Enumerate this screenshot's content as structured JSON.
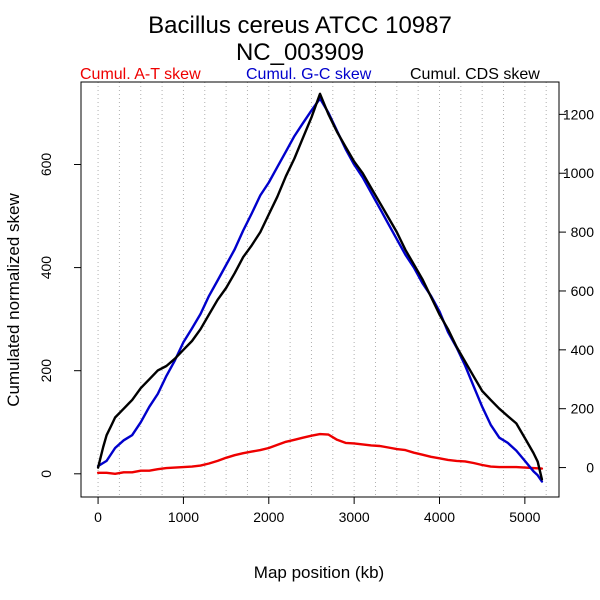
{
  "chart_data": {
    "type": "line",
    "title": "Bacillus cereus ATCC 10987",
    "subtitle": "NC_003909",
    "xlabel": "Map position (kb)",
    "ylabel": "Cumulated normalized skew",
    "xlim": [
      -200,
      5400
    ],
    "ylim_left": [
      -45,
      760
    ],
    "ylim_right": [
      -100,
      1310
    ],
    "grid": "vertical dotted every 250 kb",
    "x_ticks": [
      "0",
      "1000",
      "2000",
      "3000",
      "4000",
      "5000"
    ],
    "y_ticks_left": [
      "0",
      "200",
      "400",
      "600"
    ],
    "y_ticks_right": [
      "0",
      "200",
      "400",
      "600",
      "800",
      "1000",
      "1200"
    ],
    "legend": [
      "Cumul. A-T skew",
      "Cumul. G-C skew",
      "Cumul. CDS skew"
    ],
    "series": [
      {
        "name": "Cumul. A-T skew",
        "color": "#ee0000",
        "axis": "left",
        "points": [
          [
            0,
            2
          ],
          [
            100,
            2
          ],
          [
            200,
            0
          ],
          [
            300,
            3
          ],
          [
            400,
            3
          ],
          [
            500,
            6
          ],
          [
            600,
            6
          ],
          [
            700,
            9
          ],
          [
            800,
            11
          ],
          [
            900,
            12
          ],
          [
            1000,
            13
          ],
          [
            1100,
            14
          ],
          [
            1200,
            16
          ],
          [
            1300,
            20
          ],
          [
            1400,
            25
          ],
          [
            1500,
            31
          ],
          [
            1600,
            36
          ],
          [
            1700,
            40
          ],
          [
            1800,
            43
          ],
          [
            1900,
            46
          ],
          [
            2000,
            50
          ],
          [
            2100,
            56
          ],
          [
            2200,
            62
          ],
          [
            2300,
            66
          ],
          [
            2400,
            70
          ],
          [
            2500,
            74
          ],
          [
            2600,
            77
          ],
          [
            2700,
            76
          ],
          [
            2800,
            66
          ],
          [
            2900,
            60
          ],
          [
            3000,
            59
          ],
          [
            3100,
            57
          ],
          [
            3200,
            55
          ],
          [
            3300,
            54
          ],
          [
            3400,
            51
          ],
          [
            3500,
            48
          ],
          [
            3600,
            46
          ],
          [
            3700,
            41
          ],
          [
            3800,
            37
          ],
          [
            3900,
            33
          ],
          [
            4000,
            30
          ],
          [
            4100,
            27
          ],
          [
            4200,
            25
          ],
          [
            4300,
            24
          ],
          [
            4400,
            21
          ],
          [
            4500,
            17
          ],
          [
            4600,
            14
          ],
          [
            4700,
            13
          ],
          [
            4800,
            13
          ],
          [
            4900,
            13
          ],
          [
            5000,
            12
          ],
          [
            5100,
            11
          ],
          [
            5200,
            10
          ]
        ]
      },
      {
        "name": "Cumul. G-C skew",
        "color": "#0000cc",
        "axis": "left",
        "points": [
          [
            0,
            15
          ],
          [
            50,
            20
          ],
          [
            100,
            25
          ],
          [
            200,
            50
          ],
          [
            300,
            65
          ],
          [
            400,
            75
          ],
          [
            500,
            100
          ],
          [
            600,
            130
          ],
          [
            700,
            155
          ],
          [
            800,
            190
          ],
          [
            900,
            220
          ],
          [
            1000,
            255
          ],
          [
            1100,
            282
          ],
          [
            1200,
            310
          ],
          [
            1300,
            345
          ],
          [
            1400,
            375
          ],
          [
            1500,
            405
          ],
          [
            1600,
            435
          ],
          [
            1700,
            472
          ],
          [
            1800,
            505
          ],
          [
            1900,
            540
          ],
          [
            2000,
            565
          ],
          [
            2100,
            595
          ],
          [
            2200,
            625
          ],
          [
            2300,
            655
          ],
          [
            2400,
            680
          ],
          [
            2500,
            705
          ],
          [
            2600,
            728
          ],
          [
            2700,
            700
          ],
          [
            2800,
            665
          ],
          [
            2900,
            630
          ],
          [
            3000,
            600
          ],
          [
            3100,
            575
          ],
          [
            3200,
            545
          ],
          [
            3300,
            515
          ],
          [
            3400,
            485
          ],
          [
            3500,
            455
          ],
          [
            3600,
            425
          ],
          [
            3700,
            400
          ],
          [
            3800,
            370
          ],
          [
            3900,
            345
          ],
          [
            4000,
            315
          ],
          [
            4100,
            275
          ],
          [
            4200,
            245
          ],
          [
            4300,
            210
          ],
          [
            4400,
            170
          ],
          [
            4500,
            130
          ],
          [
            4600,
            95
          ],
          [
            4700,
            70
          ],
          [
            4800,
            60
          ],
          [
            4900,
            45
          ],
          [
            5000,
            25
          ],
          [
            5100,
            5
          ],
          [
            5150,
            -3
          ],
          [
            5200,
            -15
          ]
        ]
      },
      {
        "name": "Cumul. CDS skew",
        "color": "#000000",
        "axis": "right",
        "points": [
          [
            0,
            0
          ],
          [
            60,
            70
          ],
          [
            100,
            110
          ],
          [
            150,
            140
          ],
          [
            200,
            170
          ],
          [
            300,
            200
          ],
          [
            400,
            230
          ],
          [
            500,
            270
          ],
          [
            600,
            300
          ],
          [
            700,
            330
          ],
          [
            800,
            345
          ],
          [
            900,
            370
          ],
          [
            1000,
            400
          ],
          [
            1100,
            430
          ],
          [
            1200,
            470
          ],
          [
            1300,
            520
          ],
          [
            1400,
            570
          ],
          [
            1500,
            610
          ],
          [
            1600,
            660
          ],
          [
            1700,
            715
          ],
          [
            1800,
            755
          ],
          [
            1900,
            800
          ],
          [
            2000,
            860
          ],
          [
            2100,
            920
          ],
          [
            2200,
            990
          ],
          [
            2300,
            1050
          ],
          [
            2400,
            1120
          ],
          [
            2500,
            1190
          ],
          [
            2600,
            1270
          ],
          [
            2700,
            1200
          ],
          [
            2800,
            1140
          ],
          [
            2900,
            1090
          ],
          [
            3000,
            1040
          ],
          [
            3100,
            1000
          ],
          [
            3200,
            950
          ],
          [
            3300,
            900
          ],
          [
            3400,
            850
          ],
          [
            3500,
            800
          ],
          [
            3600,
            740
          ],
          [
            3700,
            690
          ],
          [
            3800,
            640
          ],
          [
            3900,
            580
          ],
          [
            4000,
            520
          ],
          [
            4100,
            470
          ],
          [
            4200,
            410
          ],
          [
            4300,
            360
          ],
          [
            4400,
            310
          ],
          [
            4500,
            260
          ],
          [
            4600,
            230
          ],
          [
            4700,
            200
          ],
          [
            4800,
            175
          ],
          [
            4900,
            150
          ],
          [
            5000,
            100
          ],
          [
            5100,
            50
          ],
          [
            5150,
            20
          ],
          [
            5200,
            -40
          ]
        ]
      }
    ]
  }
}
